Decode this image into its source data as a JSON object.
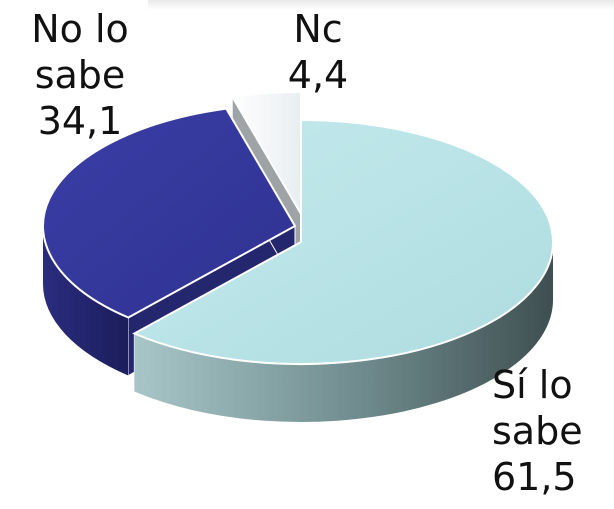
{
  "chart_data": {
    "type": "pie",
    "style": "3d-exploded",
    "slices": [
      {
        "label_line1": "Sí lo",
        "label_line2": "sabe",
        "value": 61.5,
        "value_text": "61,5",
        "color": "#b9e3e6"
      },
      {
        "label_line1": "No lo",
        "label_line2": "sabe",
        "value": 34.1,
        "value_text": "34,1",
        "color": "#353899"
      },
      {
        "label_line1": "Nc",
        "label_line2": "",
        "value": 4.4,
        "value_text": "4,4",
        "color": "#f6f9fa"
      }
    ],
    "legend": "none"
  }
}
